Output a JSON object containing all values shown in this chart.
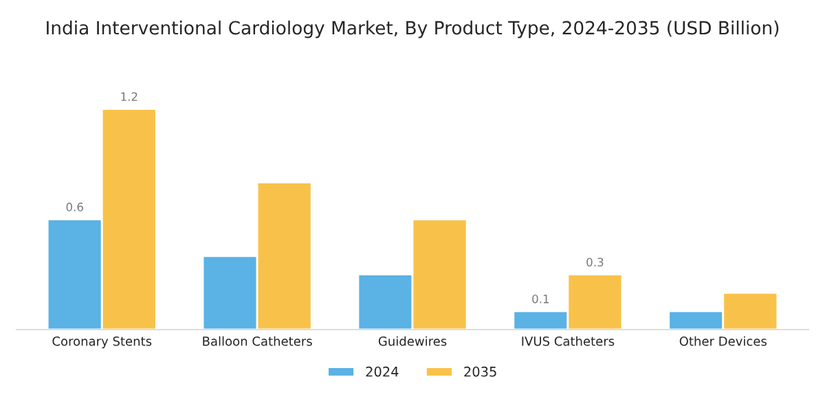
{
  "chart_data": {
    "type": "bar",
    "title": "India Interventional Cardiology Market, By Product Type, 2024-2035 (USD Billion)",
    "categories": [
      "Coronary Stents",
      "Balloon Catheters",
      "Guidewires",
      "IVUS Catheters",
      "Other Devices"
    ],
    "series": [
      {
        "name": "2024",
        "color": "#5ab2e5",
        "values": [
          0.6,
          0.4,
          0.3,
          0.1,
          0.1
        ],
        "value_labels": [
          "0.6",
          null,
          null,
          "0.1",
          null
        ]
      },
      {
        "name": "2035",
        "color": "#f8c24a",
        "values": [
          1.2,
          0.8,
          0.6,
          0.3,
          0.2
        ],
        "value_labels": [
          "1.2",
          null,
          null,
          "0.3",
          null
        ]
      }
    ],
    "legend": "bottom",
    "grid": false
  }
}
